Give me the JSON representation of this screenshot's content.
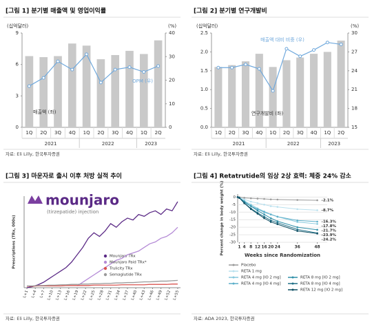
{
  "chart_data": [
    {
      "type": "combo",
      "title": "[그림 1] 분기별 매출액 및 영업이익률",
      "y_axis_label": "(십억달러)",
      "y2_axis_label": "(%)",
      "categories": [
        "1Q",
        "2Q",
        "3Q",
        "4Q",
        "1Q",
        "2Q",
        "3Q",
        "4Q",
        "1Q",
        "2Q"
      ],
      "x_groups": [
        "2021",
        "2021",
        "2021",
        "2021",
        "2022",
        "2022",
        "2022",
        "2022",
        "2023",
        "2023"
      ],
      "series": [
        {
          "name": "매출액 (좌)",
          "type": "bar",
          "color": "#c9c9c9",
          "values": [
            6.8,
            6.7,
            6.8,
            8.0,
            7.8,
            6.5,
            6.9,
            7.3,
            7.0,
            8.3
          ]
        },
        {
          "name": "OPM (우)",
          "type": "line",
          "axis": "y2",
          "color": "#6fa8dc",
          "values": [
            17.5,
            21,
            28,
            24.5,
            31,
            19,
            24.5,
            25.5,
            23.5,
            26
          ]
        }
      ],
      "ylim": [
        0,
        9
      ],
      "yticks": [
        0,
        3,
        6,
        9
      ],
      "y2lim": [
        0,
        40
      ],
      "y2ticks": [
        0,
        10,
        20,
        30,
        40
      ],
      "source": "자료: Eli Lilly, 한국투자증권"
    },
    {
      "type": "combo",
      "title": "[그림 2] 분기별 연구개발비",
      "y_axis_label": "(십억달러)",
      "y2_axis_label": "(%)",
      "categories": [
        "1Q",
        "2Q",
        "3Q",
        "4Q",
        "1Q",
        "2Q",
        "3Q",
        "4Q",
        "1Q",
        "2Q"
      ],
      "x_groups": [
        "2021",
        "2021",
        "2021",
        "2021",
        "2022",
        "2022",
        "2022",
        "2022",
        "2023",
        "2023"
      ],
      "series": [
        {
          "name": "연구개발비 (좌)",
          "type": "bar",
          "color": "#c9c9c9",
          "values": [
            1.6,
            1.65,
            1.75,
            1.95,
            1.6,
            1.78,
            1.85,
            1.95,
            2.0,
            2.3
          ]
        },
        {
          "name": "매출액 대비 비중 (우)",
          "type": "line",
          "axis": "y2",
          "color": "#6fa8dc",
          "values": [
            24.5,
            24.5,
            25,
            24.3,
            20.8,
            27.5,
            26.3,
            27.3,
            28.5,
            28.2
          ]
        }
      ],
      "ylim": [
        0,
        2.5
      ],
      "yticks": [
        {
          "value": 0,
          "label": "0.0"
        },
        0.5,
        {
          "value": 1,
          "label": "1.0"
        },
        1.5,
        {
          "value": 2,
          "label": "2.0"
        },
        2.5
      ],
      "y2lim": [
        15,
        30
      ],
      "y2ticks": [
        15,
        18,
        21,
        24,
        27,
        30
      ],
      "source": "자료: Eli Lilly, 한국투자증권"
    },
    {
      "type": "line",
      "title": "[그림 3] 마운자로 출시 이후 처방 실적 추이",
      "logo_text": "mounjaro",
      "logo_subtitle": "(tirzepatide) injection",
      "y_axis_label": "Prescriptions (TRx, 000s)",
      "x": [
        1,
        3,
        5,
        7,
        9,
        11,
        13,
        15,
        17,
        19,
        21,
        23,
        25,
        27,
        29,
        31,
        33,
        35,
        37,
        39,
        41,
        43,
        45,
        47,
        49,
        51,
        53,
        55
      ],
      "xlim": [
        0,
        56
      ],
      "xticks": [
        {
          "value": 1,
          "label": "L+1"
        },
        {
          "value": 4,
          "label": "L+4"
        },
        {
          "value": 7,
          "label": "L+7"
        },
        {
          "value": 10,
          "label": "L+10"
        },
        {
          "value": 13,
          "label": "L+13"
        },
        {
          "value": 16,
          "label": "L+16"
        },
        {
          "value": 19,
          "label": "L+19"
        },
        {
          "value": 22,
          "label": "L+22"
        },
        {
          "value": 25,
          "label": "L+25"
        },
        {
          "value": 28,
          "label": "L+28"
        },
        {
          "value": 31,
          "label": "L+31"
        },
        {
          "value": 34,
          "label": "L+34"
        },
        {
          "value": 37,
          "label": "L+37"
        },
        {
          "value": 40,
          "label": "L+40"
        },
        {
          "value": 43,
          "label": "L+43"
        },
        {
          "value": 46,
          "label": "L+46"
        },
        {
          "value": 49,
          "label": "L+49"
        },
        {
          "value": 52,
          "label": "L+52"
        },
        {
          "value": 55,
          "label": "L+55"
        }
      ],
      "ylim": [
        0,
        250
      ],
      "series": [
        {
          "name": "Mounjaro TRx",
          "color": "#5b2a86",
          "values": [
            0,
            3,
            8,
            15,
            25,
            35,
            45,
            55,
            70,
            90,
            110,
            135,
            150,
            140,
            155,
            175,
            165,
            180,
            190,
            185,
            200,
            195,
            205,
            210,
            200,
            215,
            210,
            235
          ]
        },
        {
          "name": "Mounjaro Paid TRx*",
          "color": "#b48ad6",
          "values": [
            null,
            null,
            null,
            null,
            null,
            null,
            null,
            null,
            null,
            5,
            15,
            25,
            35,
            45,
            55,
            65,
            75,
            80,
            90,
            95,
            100,
            110,
            120,
            125,
            135,
            140,
            150,
            165
          ]
        },
        {
          "name": "Trulicity TRx",
          "color": "#d9534f",
          "values": [
            4,
            4,
            5,
            5,
            5,
            5,
            5,
            6,
            6,
            6,
            6,
            6,
            7,
            7,
            7,
            7,
            7,
            8,
            8,
            8,
            8,
            8,
            9,
            9,
            9,
            9,
            10,
            10
          ]
        },
        {
          "name": "Semaglutide TRx",
          "color": "#9a9a9a",
          "values": [
            5,
            5,
            6,
            6,
            7,
            7,
            8,
            8,
            9,
            9,
            10,
            10,
            11,
            11,
            12,
            12,
            13,
            13,
            14,
            14,
            15,
            16,
            16,
            17,
            18,
            18,
            19,
            20
          ]
        }
      ],
      "source": "자료: Eli Lilly, 한국투자증권"
    },
    {
      "type": "line",
      "title": "[그림 4] Retatrutide의 임상 2상 효력: 체중 24% 감소",
      "y_axis_label": "Percent change in body weight (%)",
      "x_axis_label": "Weeks since Randomization",
      "x": [
        0,
        1,
        4,
        8,
        12,
        16,
        20,
        24,
        36,
        48
      ],
      "xlim": [
        0,
        54
      ],
      "xticks": [
        1,
        4,
        8,
        12,
        16,
        20,
        24,
        36,
        48
      ],
      "ylim": [
        -30,
        2
      ],
      "yticks": [
        0,
        -5,
        -10,
        -15,
        -20,
        -25,
        -30
      ],
      "grid": true,
      "series": [
        {
          "name": "Placebo",
          "color": "#999999",
          "values": [
            0,
            0,
            -0.5,
            -0.8,
            -1,
            -1.2,
            -1.5,
            -1.6,
            -1.9,
            -2.1
          ],
          "value_labels": [
            null,
            null,
            null,
            null,
            null,
            null,
            null,
            null,
            null,
            "-2.1%"
          ]
        },
        {
          "name": "RETA 1 mg",
          "color": "#b9e0ee",
          "values": [
            0,
            -0.3,
            -1.5,
            -3,
            -4,
            -5,
            -6,
            -6.5,
            -8,
            -8.7
          ],
          "value_labels": [
            null,
            null,
            null,
            null,
            null,
            null,
            null,
            null,
            null,
            "-8.7%"
          ]
        },
        {
          "name": "RETA 4 mg [IO 2 mg]",
          "color": "#86c8dc",
          "values": [
            0,
            -0.5,
            -2.5,
            -5,
            -7.5,
            -9.5,
            -11.5,
            -13,
            -16.5,
            -17.8
          ],
          "value_labels": [
            null,
            null,
            null,
            null,
            null,
            null,
            null,
            null,
            null,
            "-17.8%"
          ]
        },
        {
          "name": "RETA 4 mg [IO 4 mg]",
          "color": "#5aaec9",
          "values": [
            0,
            -0.5,
            -3.5,
            -6,
            -8,
            -10,
            -11.5,
            -13,
            -15.5,
            -16.3
          ],
          "value_labels": [
            null,
            null,
            null,
            null,
            null,
            null,
            null,
            null,
            null,
            "-16.3%"
          ]
        },
        {
          "name": "RETA 8 mg [IO 2 mg]",
          "color": "#2f8fa8",
          "values": [
            0,
            -0.5,
            -3,
            -6,
            -9,
            -11.5,
            -14,
            -16,
            -20,
            -21.7
          ],
          "value_labels": [
            null,
            null,
            null,
            null,
            null,
            null,
            null,
            null,
            null,
            "-21.7%"
          ]
        },
        {
          "name": "RETA 8 mg [IO 4 mg]",
          "color": "#1f6f87",
          "values": [
            0,
            -0.5,
            -4,
            -7.5,
            -10.5,
            -13,
            -15.5,
            -17,
            -21.5,
            -23.9
          ],
          "value_labels": [
            null,
            null,
            null,
            null,
            null,
            null,
            null,
            null,
            null,
            "-23.9%"
          ]
        },
        {
          "name": "RETA 12 mg [IO 2 mg]",
          "color": "#0e4f63",
          "values": [
            0,
            -0.5,
            -4,
            -8,
            -11,
            -14,
            -16.5,
            -18,
            -22.5,
            -24.2
          ],
          "value_labels": [
            null,
            null,
            null,
            null,
            null,
            null,
            null,
            null,
            null,
            "-24.2%"
          ]
        }
      ],
      "source": "자료: ADA 2023, 한국투자증권"
    }
  ]
}
